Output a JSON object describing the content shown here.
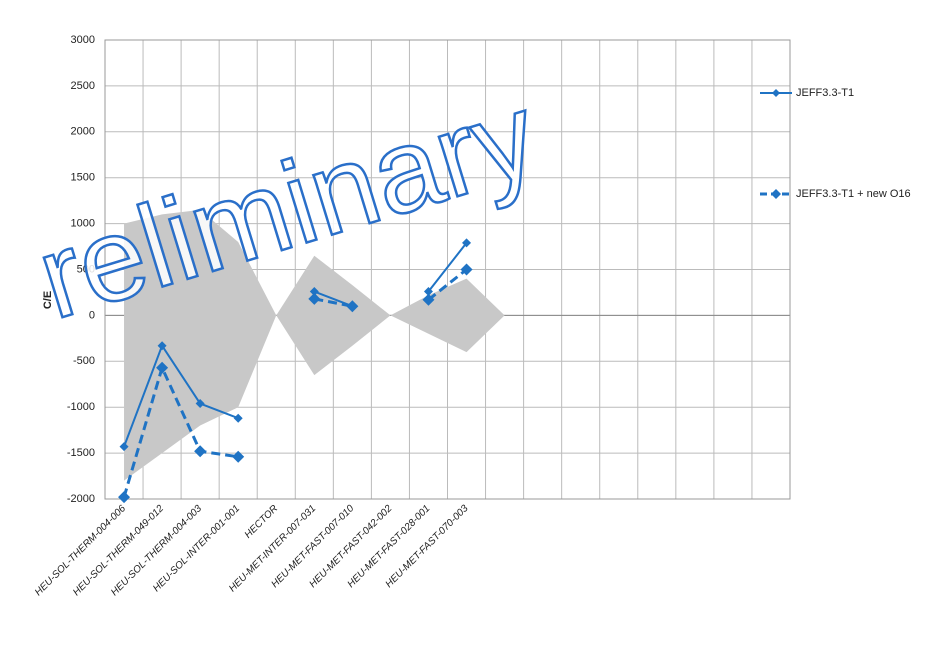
{
  "chart_data": {
    "type": "line",
    "y_label": "C/E",
    "annotation": "reliminary",
    "categories": [
      "HEU-SOL-THERM-004-006",
      "HEU-SOL-THERM-049-012",
      "HEU-SOL-THERM-004-003",
      "HEU-SOL-INTER-001-001",
      "HECTOR",
      "HEU-MET-INTER-007-031",
      "HEU-MET-FAST-007-010",
      "HEU-MET-FAST-042-002",
      "HEU-MET-FAST-028-001",
      "HEU-MET-FAST-070-003",
      null,
      null,
      null,
      null,
      null,
      null,
      null,
      null
    ],
    "series": [
      {
        "name": "JEFF3.3-T1",
        "color": "#1f73c4",
        "dash": false,
        "values": [
          -1430,
          -330,
          -960,
          -1120,
          null,
          260,
          100,
          null,
          260,
          790,
          null,
          null,
          null,
          null,
          null,
          null,
          null,
          null
        ]
      },
      {
        "name": "JEFF3.3-T1 + new O16",
        "color": "#1f73c4",
        "dash": true,
        "values": [
          -1980,
          -570,
          -1480,
          -1540,
          null,
          180,
          100,
          null,
          170,
          500,
          null,
          null,
          null,
          null,
          null,
          null,
          null,
          null
        ]
      }
    ],
    "band": {
      "color": "#c8c8c8",
      "upper": [
        1000,
        1100,
        1150,
        800,
        0,
        650,
        330,
        0,
        220,
        400,
        0,
        null,
        null,
        null,
        null,
        null,
        null,
        null
      ],
      "lower": [
        -1800,
        -1500,
        -1200,
        -1000,
        0,
        -650,
        -330,
        0,
        -200,
        -400,
        0,
        null,
        null,
        null,
        null,
        null,
        null,
        null
      ]
    },
    "ylim": [
      -2000,
      3000
    ],
    "yticks": [
      -2000,
      -1500,
      -1000,
      -500,
      0,
      500,
      1000,
      1500,
      2000,
      2500,
      3000
    ],
    "grid": true,
    "legend": "right"
  }
}
